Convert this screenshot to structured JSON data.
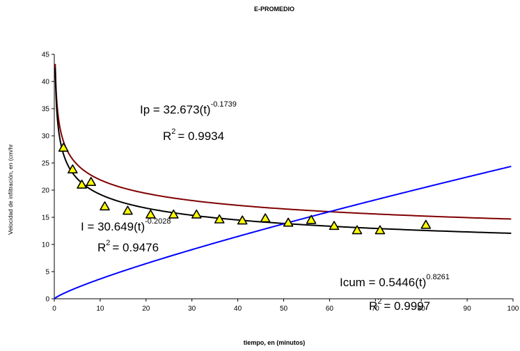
{
  "chart_data": {
    "type": "scatter",
    "title": "E-PROMEDIO",
    "xlabel": "tiempo, en (minutos)",
    "ylabel": "Velocidad de infiltración, en (cm/hr",
    "xlim": [
      0,
      100
    ],
    "ylim": [
      0,
      45
    ],
    "x_ticks": [
      "0",
      "10",
      "20",
      "30",
      "40",
      "50",
      "60",
      "70",
      "80",
      "90",
      "100"
    ],
    "y_ticks": [
      "0",
      "5",
      "10",
      "15",
      "20",
      "25",
      "30",
      "35",
      "40",
      "45"
    ],
    "grid": false,
    "series": [
      {
        "kind": "markers",
        "marker": "triangle",
        "color": "#ffff00",
        "points": [
          [
            2,
            27.8
          ],
          [
            4,
            23.8
          ],
          [
            6,
            21.0
          ],
          [
            8,
            21.5
          ],
          [
            11,
            17.0
          ],
          [
            16,
            16.2
          ],
          [
            21,
            15.5
          ],
          [
            26,
            15.5
          ],
          [
            31,
            15.5
          ],
          [
            36,
            14.6
          ],
          [
            41,
            14.4
          ],
          [
            46,
            14.8
          ],
          [
            51,
            14.0
          ],
          [
            56,
            14.5
          ],
          [
            61,
            13.4
          ],
          [
            66,
            12.6
          ],
          [
            71,
            12.6
          ],
          [
            81,
            13.6
          ]
        ]
      },
      {
        "kind": "curve",
        "color": "#800000",
        "a": 32.673,
        "b": -0.1739
      },
      {
        "kind": "curve",
        "color": "#000000",
        "a": 30.649,
        "b": -0.2028
      },
      {
        "kind": "curve",
        "color": "#0000ff",
        "a": 0.5446,
        "b": 0.8261
      }
    ],
    "annotations": [
      {
        "base": "Ip = 32.673(t)",
        "exp": "-0.1739",
        "r2": "= 0.9934"
      },
      {
        "base": "I = 30.649(t)",
        "exp": "-0.2028",
        "r2": "= 0.9476"
      },
      {
        "base": "Icum = 0.5446(t)",
        "exp": "0.8261",
        "r2": "= 0.9997"
      }
    ],
    "r2_label": "R"
  },
  "colors": {
    "marker_stroke": "#000000",
    "axis": "#000000"
  }
}
